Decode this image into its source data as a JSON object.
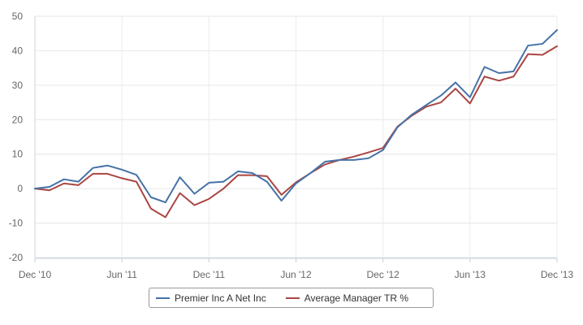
{
  "chart_data": {
    "type": "line",
    "title": "",
    "xlabel": "",
    "ylabel": "",
    "ylim": [
      -20,
      50
    ],
    "y_ticks": [
      "50",
      "40",
      "30",
      "20",
      "10",
      "0",
      "-10",
      "-20"
    ],
    "y_tick_values": [
      50,
      40,
      30,
      20,
      10,
      0,
      -10,
      -20
    ],
    "x_tick_labels": [
      "Dec '10",
      "Jun '11",
      "Dec '11",
      "Jun '12",
      "Dec '12",
      "Jun '13",
      "Dec '13"
    ],
    "x_tick_months": [
      0,
      6,
      12,
      18,
      24,
      30,
      36
    ],
    "grid": true,
    "legend_position": "bottom",
    "series": [
      {
        "name": "Premier Inc A Net Inc",
        "color": "#4572a7",
        "values": [
          0,
          0.5,
          2.7,
          2.0,
          6.0,
          6.7,
          5.5,
          4.0,
          -2.5,
          -4.0,
          3.3,
          -1.5,
          1.7,
          2.0,
          5.0,
          4.5,
          2.0,
          -3.5,
          1.5,
          4.5,
          7.8,
          8.3,
          8.3,
          8.8,
          11.2,
          17.8,
          21.5,
          24.3,
          27.0,
          30.8,
          26.5,
          35.3,
          33.5,
          34.0,
          41.5,
          42.0,
          46.0
        ]
      },
      {
        "name": "Average Manager TR %",
        "color": "#aa4643",
        "values": [
          0,
          -0.5,
          1.5,
          1.0,
          4.3,
          4.3,
          3.0,
          2.0,
          -5.8,
          -8.3,
          -1.3,
          -4.8,
          -3.0,
          0,
          3.9,
          3.9,
          3.6,
          -1.8,
          1.8,
          4.5,
          7.0,
          8.3,
          9.3,
          10.5,
          11.8,
          18.0,
          21.2,
          23.8,
          25.0,
          29.0,
          24.7,
          32.5,
          31.3,
          32.5,
          39.0,
          38.8,
          41.3
        ]
      }
    ]
  }
}
